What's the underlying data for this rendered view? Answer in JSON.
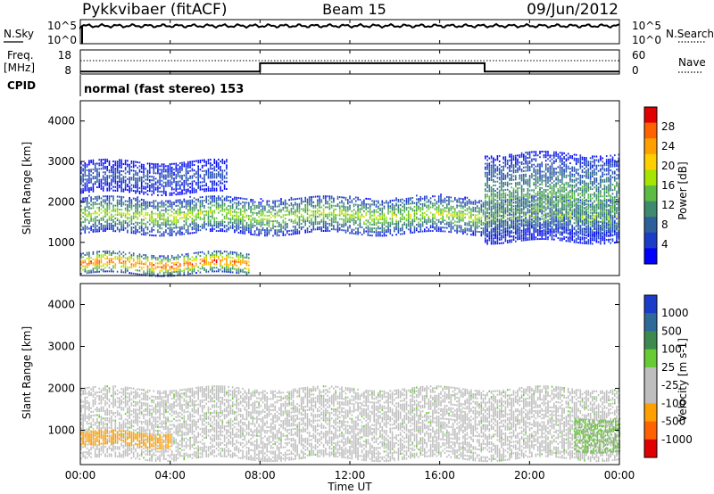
{
  "header": {
    "station": "Pykkvibaer (fitACF)",
    "beam": "Beam 15",
    "date": "09/Jun/2012"
  },
  "status_panel": {
    "left_label": "N.Sky",
    "right_label": "N.Search",
    "y_ticks": [
      "10^5",
      "10^0"
    ],
    "right_ticks": [
      "10^5",
      "10^0"
    ]
  },
  "freq_panel": {
    "left_label_1": "Freq.",
    "left_label_2": "[MHz]",
    "y_ticks": [
      "18",
      "8"
    ],
    "right_ticks": [
      "60",
      "0"
    ],
    "right_label": "Nave",
    "freq_steps": [
      {
        "t": 0,
        "v": 9.0
      },
      {
        "t": 8.0,
        "v": 12.5
      },
      {
        "t": 18.0,
        "v": 9.0
      },
      {
        "t": 24,
        "v": 9.0
      }
    ]
  },
  "cpid": {
    "label": "CPID",
    "value": "normal (fast stereo) 153"
  },
  "chart_data": [
    {
      "type": "heatmap",
      "title": "Power",
      "ylabel": "Slant Range [km]",
      "xlabel": "",
      "x_ticks": [
        "00:00",
        "04:00",
        "08:00",
        "12:00",
        "16:00",
        "20:00",
        "00:00"
      ],
      "xlim": [
        0,
        24
      ],
      "ylim": [
        180,
        4500
      ],
      "y_ticks": [
        1000,
        2000,
        3000,
        4000
      ],
      "colorbar": {
        "label": "Power [dB]",
        "ticks": [
          "28",
          "24",
          "20",
          "16",
          "12",
          "8",
          "4"
        ],
        "colors": [
          "#e10000",
          "#ff6200",
          "#ff9f00",
          "#ffd000",
          "#a6e500",
          "#5cbb43",
          "#3e8a6e",
          "#2d5f9a",
          "#1a3cc8",
          "#0000ff"
        ]
      },
      "features": [
        {
          "name": "near-range echo band",
          "t_start": 0,
          "t_end": 7.5,
          "range_low": 200,
          "range_high": 700,
          "power_db": 28
        },
        {
          "name": "main F-region band",
          "t_start": 0,
          "t_end": 24,
          "range_low": 1200,
          "range_high": 2100,
          "power_db": 18
        },
        {
          "name": "far scatter",
          "t_start": 0,
          "t_end": 6.5,
          "range_low": 2200,
          "range_high": 3000,
          "power_db": 8
        },
        {
          "name": "evening scatter",
          "t_start": 18,
          "t_end": 24,
          "range_low": 1000,
          "range_high": 3200,
          "power_db": 14
        }
      ]
    },
    {
      "type": "heatmap",
      "title": "Velocity",
      "ylabel": "Slant Range [km]",
      "xlabel": "Time UT",
      "x_ticks": [
        "00:00",
        "04:00",
        "08:00",
        "12:00",
        "16:00",
        "20:00",
        "00:00"
      ],
      "xlim": [
        0,
        24
      ],
      "ylim": [
        180,
        4500
      ],
      "y_ticks": [
        1000,
        2000,
        3000,
        4000
      ],
      "colorbar": {
        "label": "Velocity [m s-1]",
        "ticks": [
          "1000",
          "500",
          "100",
          "25",
          "-25",
          "-100",
          "-500",
          "-1000"
        ],
        "colors": [
          "#1a3cc8",
          "#2d6a9a",
          "#3e8a4e",
          "#66cc33",
          "#bebebe",
          "#bebebe",
          "#ff9f00",
          "#ff6200",
          "#e10000"
        ]
      },
      "features": [
        {
          "name": "ground scatter band",
          "t_start": 0,
          "t_end": 24,
          "range_low": 300,
          "range_high": 2000,
          "velocity": 0
        },
        {
          "name": "early negative flow",
          "t_start": 0,
          "t_end": 4,
          "range_low": 600,
          "range_high": 950,
          "velocity": -300
        },
        {
          "name": "late positive flow",
          "t_start": 22,
          "t_end": 24,
          "range_low": 500,
          "range_high": 1300,
          "velocity": 100
        }
      ]
    }
  ]
}
